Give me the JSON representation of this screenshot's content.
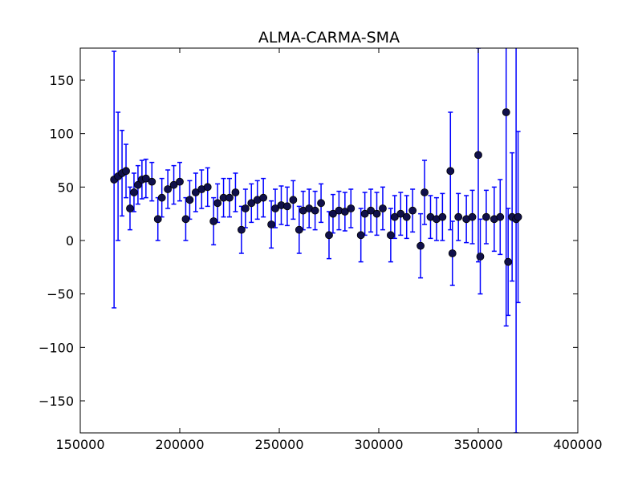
{
  "chart_data": {
    "type": "errorbar",
    "title": "ALMA-CARMA-SMA",
    "xlim": [
      150000,
      400000
    ],
    "xticks": [
      150000,
      200000,
      250000,
      300000,
      350000,
      400000
    ],
    "ylim": [
      -180,
      180
    ],
    "yticks": [
      {
        "value": -150,
        "label": "−150"
      },
      {
        "value": -100,
        "label": "−100"
      },
      {
        "value": -50,
        "label": "−50"
      },
      0,
      50,
      100,
      150
    ],
    "grid": false,
    "series": [
      {
        "color": "#0000ff",
        "marker_color": "#10104a",
        "x": [
          167000,
          169000,
          171000,
          173000,
          175000,
          177000,
          179000,
          181000,
          183000,
          186000,
          189000,
          191000,
          194000,
          197000,
          200000,
          203000,
          205000,
          208000,
          211000,
          214000,
          217000,
          219000,
          222000,
          225000,
          228000,
          231000,
          233000,
          236000,
          239000,
          242000,
          246000,
          248000,
          251000,
          254000,
          257000,
          260000,
          262000,
          265000,
          268000,
          271000,
          275000,
          277000,
          280000,
          283000,
          286000,
          291000,
          293000,
          296000,
          299000,
          302000,
          306000,
          308000,
          311000,
          314000,
          317000,
          321000,
          323000,
          326000,
          329000,
          332000,
          336000,
          337000,
          340000,
          344000,
          347000,
          350000,
          351000,
          354000,
          358000,
          361000,
          364000,
          365000,
          367000,
          369000,
          370000
        ],
        "values": [
          57,
          60,
          63,
          65,
          30,
          45,
          52,
          57,
          58,
          55,
          20,
          40,
          48,
          52,
          55,
          20,
          38,
          45,
          48,
          50,
          18,
          35,
          40,
          40,
          45,
          10,
          30,
          35,
          38,
          40,
          15,
          30,
          33,
          32,
          38,
          10,
          28,
          30,
          28,
          35,
          5,
          25,
          28,
          27,
          30,
          5,
          25,
          28,
          25,
          30,
          5,
          22,
          25,
          22,
          28,
          -5,
          45,
          22,
          20,
          22,
          65,
          -12,
          22,
          20,
          22,
          80,
          -15,
          22,
          20,
          22,
          120,
          -20,
          22,
          20,
          22
        ],
        "errors": [
          120,
          60,
          40,
          25,
          20,
          18,
          18,
          18,
          18,
          18,
          20,
          18,
          18,
          18,
          18,
          20,
          18,
          18,
          18,
          18,
          22,
          18,
          18,
          18,
          18,
          22,
          18,
          18,
          18,
          18,
          22,
          18,
          18,
          18,
          18,
          22,
          18,
          18,
          18,
          18,
          22,
          18,
          18,
          18,
          18,
          25,
          20,
          20,
          20,
          20,
          25,
          20,
          20,
          20,
          20,
          30,
          30,
          20,
          20,
          22,
          55,
          30,
          22,
          22,
          25,
          100,
          35,
          25,
          30,
          35,
          200,
          50,
          60,
          200,
          80
        ]
      }
    ]
  }
}
